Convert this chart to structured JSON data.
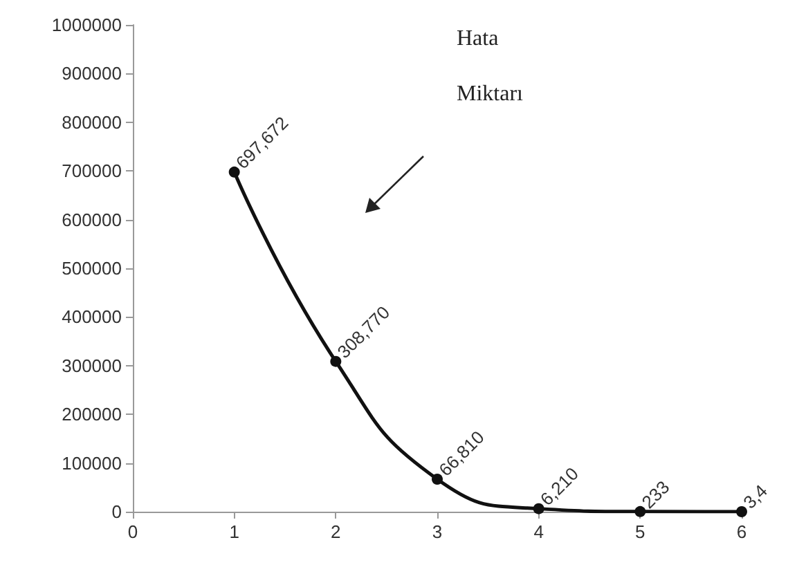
{
  "chart_data": {
    "type": "line",
    "x": [
      1,
      2,
      3,
      4,
      5,
      6
    ],
    "values": [
      697672,
      308770,
      66810,
      6210,
      233,
      3.4
    ],
    "value_labels": [
      "697,672",
      "308,770",
      "66,810",
      "6,210",
      "233",
      "3,4"
    ],
    "color": "#111111",
    "marker": "circle",
    "line_style": "solid",
    "xlim": [
      0,
      6
    ],
    "xticks": [
      0,
      1,
      2,
      3,
      4,
      5,
      6
    ],
    "ylim": [
      0,
      1000000
    ],
    "yticks": [
      0,
      100000,
      200000,
      300000,
      400000,
      500000,
      600000,
      700000,
      800000,
      900000,
      1000000
    ],
    "grid": false,
    "annotations": [
      "Hata Miktarı"
    ]
  }
}
